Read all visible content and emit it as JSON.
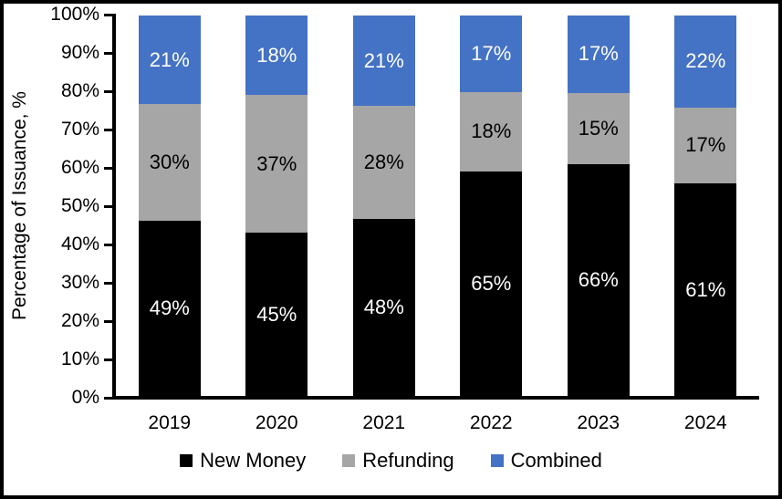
{
  "chart_data": {
    "type": "bar",
    "stacked": true,
    "title": "",
    "ylabel": "Percentage of Issuance, %",
    "xlabel": "",
    "categories": [
      "2019",
      "2020",
      "2021",
      "2022",
      "2023",
      "2024"
    ],
    "series": [
      {
        "name": "New Money",
        "color": "#000000",
        "label_color": "#FFFFFF",
        "values": [
          49,
          45,
          48,
          65,
          66,
          61
        ]
      },
      {
        "name": "Refunding",
        "color": "#A6A6A6",
        "label_color": "#000000",
        "values": [
          30,
          37,
          28,
          18,
          15,
          17
        ]
      },
      {
        "name": "Combined",
        "color": "#4472C4",
        "label_color": "#FFFFFF",
        "values": [
          21,
          18,
          21,
          17,
          17,
          22
        ]
      }
    ],
    "value_suffix": "%",
    "y_ticks": [
      "0%",
      "10%",
      "20%",
      "30%",
      "40%",
      "50%",
      "60%",
      "70%",
      "80%",
      "90%",
      "100%"
    ],
    "ylim": [
      0,
      100
    ],
    "grid": false,
    "legend_position": "bottom"
  }
}
